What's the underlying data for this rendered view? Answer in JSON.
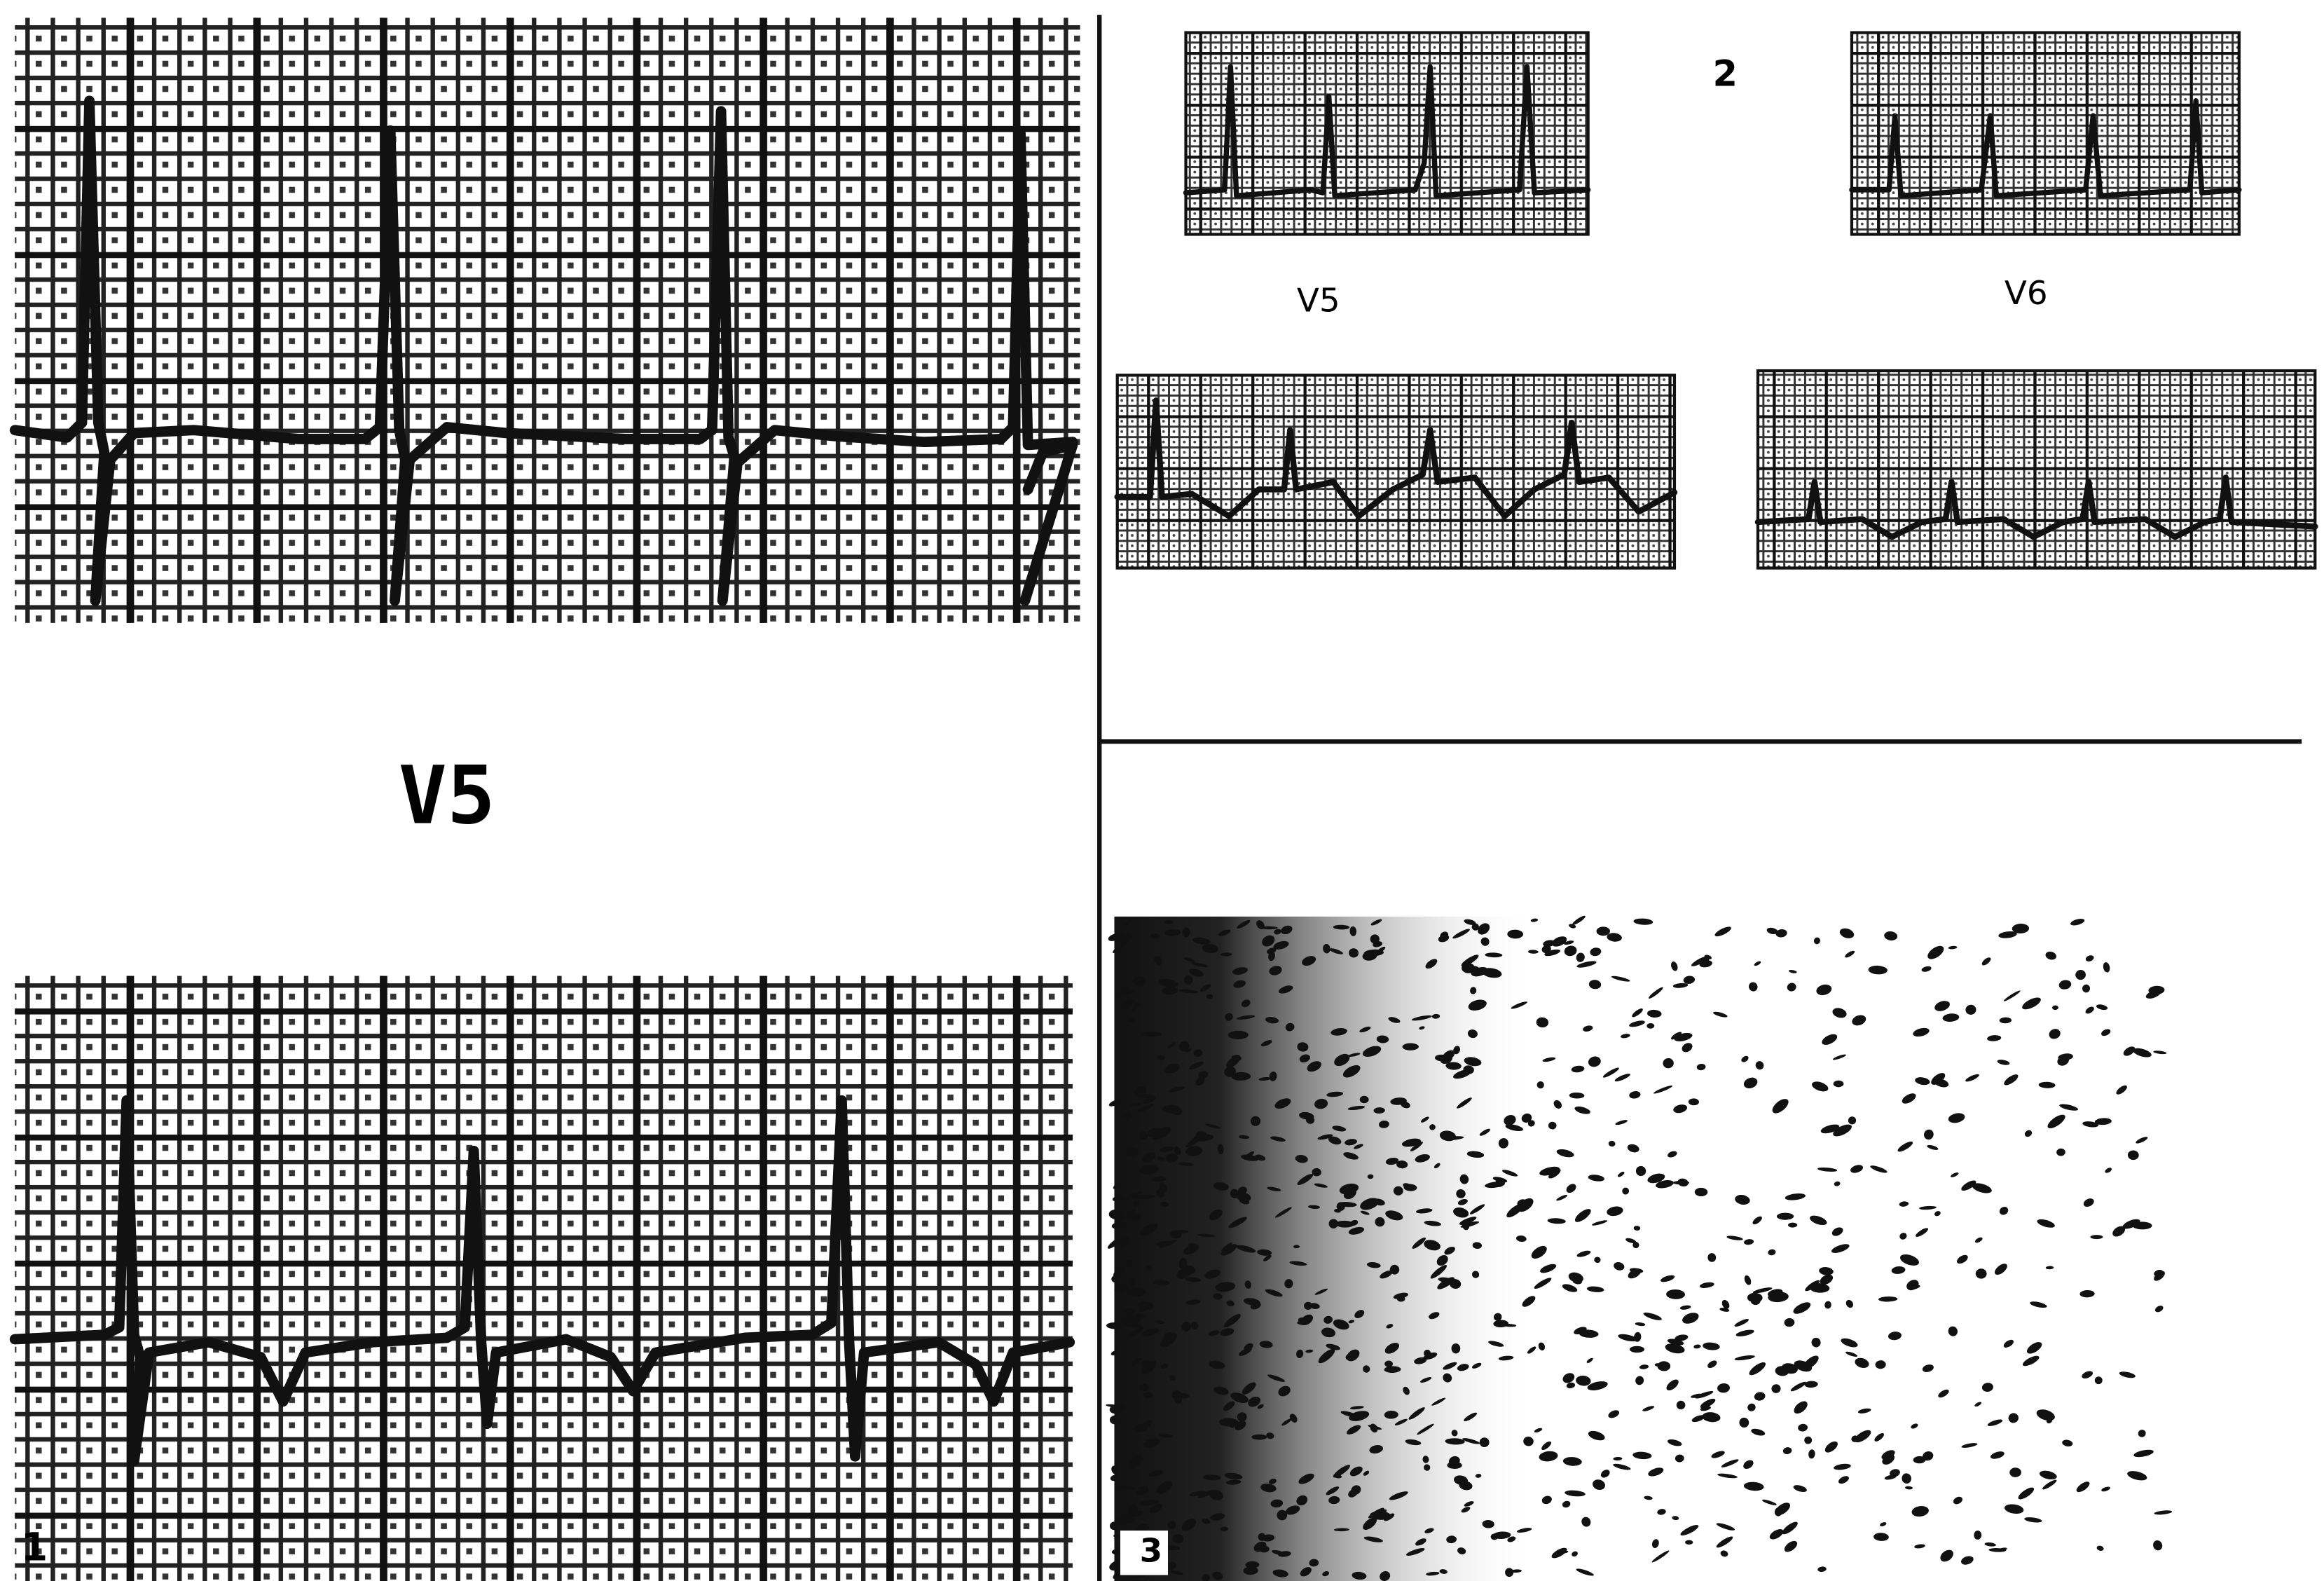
{
  "panels": [
    {
      "label": "1",
      "lead": "V5"
    },
    {
      "label": "2",
      "leads": [
        "V5",
        "V6"
      ]
    },
    {
      "label": "3"
    }
  ]
}
